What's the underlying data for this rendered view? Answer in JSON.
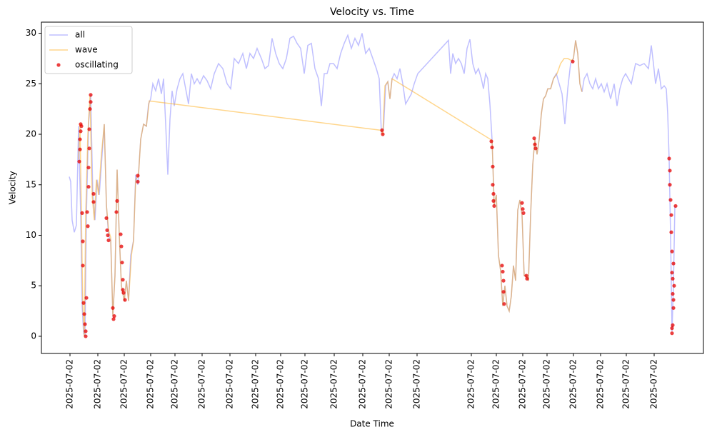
{
  "chart_data": {
    "type": "line",
    "title": "Velocity vs. Time",
    "xlabel": "Date Time",
    "ylabel": "Velocity",
    "xlim": [
      58,
      985
    ],
    "ylim": [
      -1.7,
      31.1
    ],
    "xticks": [
      {
        "value": 98,
        "label": "2025-07-02"
      },
      {
        "value": 137,
        "label": "2025-07-02"
      },
      {
        "value": 174,
        "label": "2025-07-02"
      },
      {
        "value": 211,
        "label": "2025-07-02"
      },
      {
        "value": 245,
        "label": "2025-07-02"
      },
      {
        "value": 283,
        "label": "2025-07-02"
      },
      {
        "value": 322,
        "label": "2025-07-02"
      },
      {
        "value": 358,
        "label": "2025-07-02"
      },
      {
        "value": 393,
        "label": "2025-07-02"
      },
      {
        "value": 427,
        "label": "2025-07-02"
      },
      {
        "value": 468,
        "label": "2025-07-02"
      },
      {
        "value": 508,
        "label": "2025-07-02"
      },
      {
        "value": 545,
        "label": "2025-07-02"
      },
      {
        "value": 584,
        "label": "2025-07-02"
      },
      {
        "value": 660,
        "label": "2025-07-02"
      },
      {
        "value": 695,
        "label": "2025-07-02"
      },
      {
        "value": 732,
        "label": "2025-07-02"
      },
      {
        "value": 766,
        "label": "2025-07-02"
      },
      {
        "value": 803,
        "label": "2025-07-02"
      },
      {
        "value": 841,
        "label": "2025-07-02"
      },
      {
        "value": 877,
        "label": "2025-07-02"
      },
      {
        "value": 916,
        "label": "2025-07-02"
      }
    ],
    "yticks": [
      0,
      5,
      10,
      15,
      20,
      25,
      30
    ],
    "grid": false,
    "legend": "upper left",
    "series": [
      {
        "name": "all",
        "kind": "line",
        "color": "rgba(0,0,255,0.25)",
        "x": [
          97,
          99,
          101,
          104,
          107,
          110,
          113,
          115,
          117,
          119,
          121,
          124,
          127,
          130,
          133,
          136,
          139,
          143,
          146,
          149,
          152,
          155,
          158,
          161,
          164,
          167,
          170,
          174,
          177,
          180,
          183,
          187,
          190,
          193,
          197,
          201,
          205,
          208,
          211,
          214,
          218,
          222,
          226,
          229,
          232,
          235,
          238,
          241,
          244,
          248,
          252,
          256,
          260,
          264,
          268,
          272,
          276,
          280,
          285,
          290,
          295,
          300,
          306,
          312,
          318,
          323,
          328,
          334,
          340,
          345,
          350,
          355,
          360,
          366,
          371,
          376,
          381,
          386,
          391,
          396,
          401,
          406,
          411,
          416,
          421,
          426,
          431,
          436,
          441,
          446,
          450,
          454,
          458,
          462,
          467,
          472,
          477,
          482,
          487,
          492,
          497,
          502,
          507,
          512,
          517,
          522,
          527,
          531,
          534,
          537,
          540,
          543,
          546,
          549,
          552,
          556,
          560,
          564,
          568,
          572,
          576,
          580,
          585,
          628,
          631,
          634,
          638,
          642,
          646,
          650,
          654,
          658,
          662,
          666,
          670,
          674,
          677,
          680,
          683,
          686,
          689,
          692,
          695,
          698,
          701,
          704,
          707,
          710,
          713,
          716,
          719,
          722,
          725,
          728,
          731,
          734,
          737,
          740,
          743,
          746,
          749,
          752,
          755,
          758,
          761,
          764,
          767,
          771,
          775,
          779,
          783,
          787,
          791,
          795,
          799,
          803,
          806,
          809,
          812,
          815,
          818,
          822,
          826,
          830,
          834,
          838,
          842,
          846,
          850,
          855,
          860,
          864,
          868,
          872,
          876,
          880,
          884,
          890,
          896,
          902,
          908,
          912,
          915,
          918,
          922,
          926,
          930,
          933,
          935,
          937,
          939,
          941,
          943,
          945
        ],
        "values": [
          15.8,
          15.3,
          11.5,
          10.3,
          11,
          20.8,
          12,
          3,
          0.3,
          0,
          12,
          21,
          23.9,
          14,
          11.5,
          15.5,
          14,
          18,
          21,
          13,
          10,
          9.5,
          2,
          6,
          16.5,
          10,
          5,
          3.5,
          5.5,
          3.5,
          8,
          9.5,
          16,
          15,
          19.5,
          21,
          20.8,
          23,
          23.5,
          25,
          24.3,
          25.5,
          24,
          25.5,
          21,
          16,
          21.5,
          24.3,
          22.8,
          24.5,
          25.5,
          26,
          24.5,
          23,
          26,
          25,
          25.5,
          25,
          25.8,
          25.3,
          24.5,
          26,
          27,
          26.5,
          25,
          24.5,
          27.5,
          27,
          28,
          26.5,
          28,
          27.5,
          28.5,
          27.5,
          26.5,
          26.8,
          29.5,
          28,
          27,
          26.5,
          27.5,
          29.5,
          29.7,
          29,
          28.5,
          26,
          28.8,
          29,
          26.5,
          25.5,
          22.8,
          26,
          26,
          27,
          27,
          26.5,
          28,
          29,
          29.8,
          28.5,
          29.5,
          28.8,
          30,
          28,
          28.5,
          27.5,
          26.5,
          25.5,
          20.2,
          20.5,
          24.8,
          25.2,
          23.5,
          25.5,
          26,
          25.5,
          26.5,
          25,
          23,
          23.5,
          24,
          25,
          26,
          29.3,
          26,
          28,
          27,
          27.5,
          27,
          26,
          28.5,
          29.4,
          27,
          26,
          26.5,
          25.5,
          24.5,
          26,
          25.5,
          23,
          19.5,
          13,
          14,
          8,
          6.5,
          3,
          5,
          3,
          2.5,
          4,
          7,
          5.5,
          12.5,
          13.5,
          12,
          6,
          6,
          5.5,
          12,
          17,
          19.5,
          18,
          19.5,
          22,
          23.5,
          23.8,
          24.5,
          24.5,
          25.5,
          26,
          25,
          24,
          21,
          24.5,
          27,
          27.5,
          29.3,
          28,
          25,
          24.2,
          25.5,
          26,
          25,
          24.5,
          25.5,
          24.5,
          25,
          24.2,
          25,
          23.5,
          25,
          22.8,
          24.5,
          25.5,
          26,
          25.5,
          25,
          27,
          26.8,
          27,
          26.5,
          28.8,
          27,
          25,
          26.5,
          24.5,
          24.8,
          24.5,
          22,
          17.5,
          10,
          0.5,
          5,
          12.9
        ]
      },
      {
        "name": "wave",
        "kind": "line",
        "color": "rgba(255,165,0,0.45)",
        "x": [
          110,
          112,
          114,
          116,
          118,
          120,
          123,
          126,
          129,
          132,
          135,
          138,
          142,
          146,
          149,
          152,
          155,
          158,
          161,
          164,
          167,
          170,
          174,
          177,
          180,
          184,
          187,
          190,
          194,
          197,
          201,
          205,
          209,
          533,
          536,
          539,
          543,
          546,
          549,
          689,
          692,
          695,
          698,
          701,
          704,
          707,
          710,
          713,
          716,
          719,
          722,
          725,
          728,
          731,
          734,
          737,
          740,
          743,
          746,
          749,
          752,
          755,
          758,
          761,
          764,
          767,
          771,
          775,
          780,
          785,
          790,
          795,
          800,
          803,
          806,
          809,
          812,
          815
        ],
        "values": [
          17.5,
          21,
          12,
          3,
          0,
          12,
          20,
          23.8,
          14,
          11.5,
          15.5,
          14,
          18,
          21,
          13,
          10.5,
          9.8,
          2,
          6,
          16.5,
          10,
          5,
          3.5,
          5.5,
          3.5,
          8,
          9.5,
          15.5,
          16,
          19.5,
          21,
          20.8,
          23.3,
          20.4,
          20,
          24.8,
          25.2,
          23.5,
          25.5,
          19.4,
          13,
          14,
          8,
          6.5,
          3,
          5,
          3,
          2.5,
          4,
          7,
          5.5,
          12.5,
          13.5,
          12,
          6,
          6,
          5.5,
          12,
          17,
          19.5,
          18,
          19.5,
          22,
          23.5,
          23.8,
          24.5,
          24.5,
          25.5,
          26,
          27,
          27.5,
          27.5,
          27.3,
          27.5,
          29.3,
          28,
          25,
          24.2
        ]
      },
      {
        "name": "oscillating",
        "kind": "scatter",
        "color": "rgba(230,0,0,0.75)",
        "x": [
          111,
          112,
          112,
          113,
          113,
          114,
          115,
          116,
          116,
          117,
          118,
          119,
          120,
          120,
          121,
          122,
          123,
          124,
          124,
          125,
          125,
          126,
          127,
          127,
          131,
          131,
          149,
          150,
          151,
          152,
          158,
          159,
          160,
          163,
          164,
          169,
          170,
          171,
          172,
          172,
          173,
          175,
          193,
          193,
          535,
          536,
          688,
          689,
          690,
          690,
          691,
          691,
          692,
          703,
          704,
          705,
          705,
          706,
          731,
          732,
          733,
          737,
          738,
          748,
          749,
          750,
          802,
          937,
          938,
          938,
          939,
          940,
          940,
          941,
          941,
          942,
          942,
          943,
          943,
          942,
          941,
          941,
          943,
          944,
          946
        ],
        "values": [
          17.3,
          18.5,
          19.5,
          20.3,
          21,
          20.8,
          12.2,
          9.4,
          7,
          3.3,
          2.2,
          1.2,
          0.5,
          0,
          3.8,
          12.3,
          10.9,
          14.8,
          16.7,
          18.6,
          20.5,
          22.5,
          23.9,
          23.2,
          14.1,
          13.3,
          11.7,
          10.5,
          10,
          9.5,
          2.8,
          1.7,
          2,
          12.3,
          13.4,
          10.1,
          8.9,
          7.3,
          5.6,
          4.6,
          4.3,
          3.6,
          15.9,
          15.3,
          20.4,
          20,
          19.3,
          18.7,
          16.8,
          15,
          14.1,
          13.4,
          12.9,
          7,
          6.4,
          5.5,
          4.4,
          3.2,
          13.2,
          12.6,
          12.2,
          6,
          5.7,
          19.6,
          19,
          18.6,
          27.2,
          17.6,
          16.4,
          15,
          13.5,
          12,
          10.3,
          8.4,
          6.3,
          5.7,
          4.2,
          3.6,
          2.8,
          1.1,
          0.8,
          0.3,
          7.2,
          5,
          12.9
        ]
      }
    ]
  }
}
